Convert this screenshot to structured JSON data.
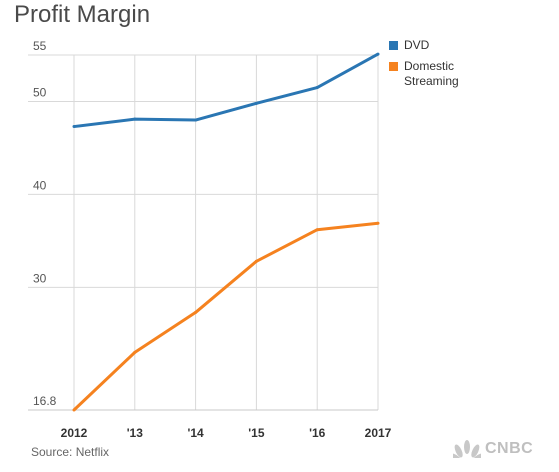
{
  "chart_data": {
    "type": "line",
    "title": "Profit Margin",
    "categories": [
      "2012",
      "'13",
      "'14",
      "'15",
      "'16",
      "2017"
    ],
    "series": [
      {
        "name": "DVD",
        "color": "#2a76b3",
        "values": [
          47.3,
          48.1,
          48.0,
          49.8,
          51.5,
          55.1
        ]
      },
      {
        "name": "Domestic Streaming",
        "color": "#f5821f",
        "values": [
          16.8,
          23.0,
          27.3,
          32.8,
          36.2,
          36.9
        ]
      }
    ],
    "yticks": [
      "55",
      "50",
      "40",
      "30",
      "16.8"
    ],
    "ylim": [
      16.8,
      55
    ],
    "grid": true,
    "legend": "top-right",
    "source": "Source: Netflix",
    "logo_text": "CNBC"
  }
}
